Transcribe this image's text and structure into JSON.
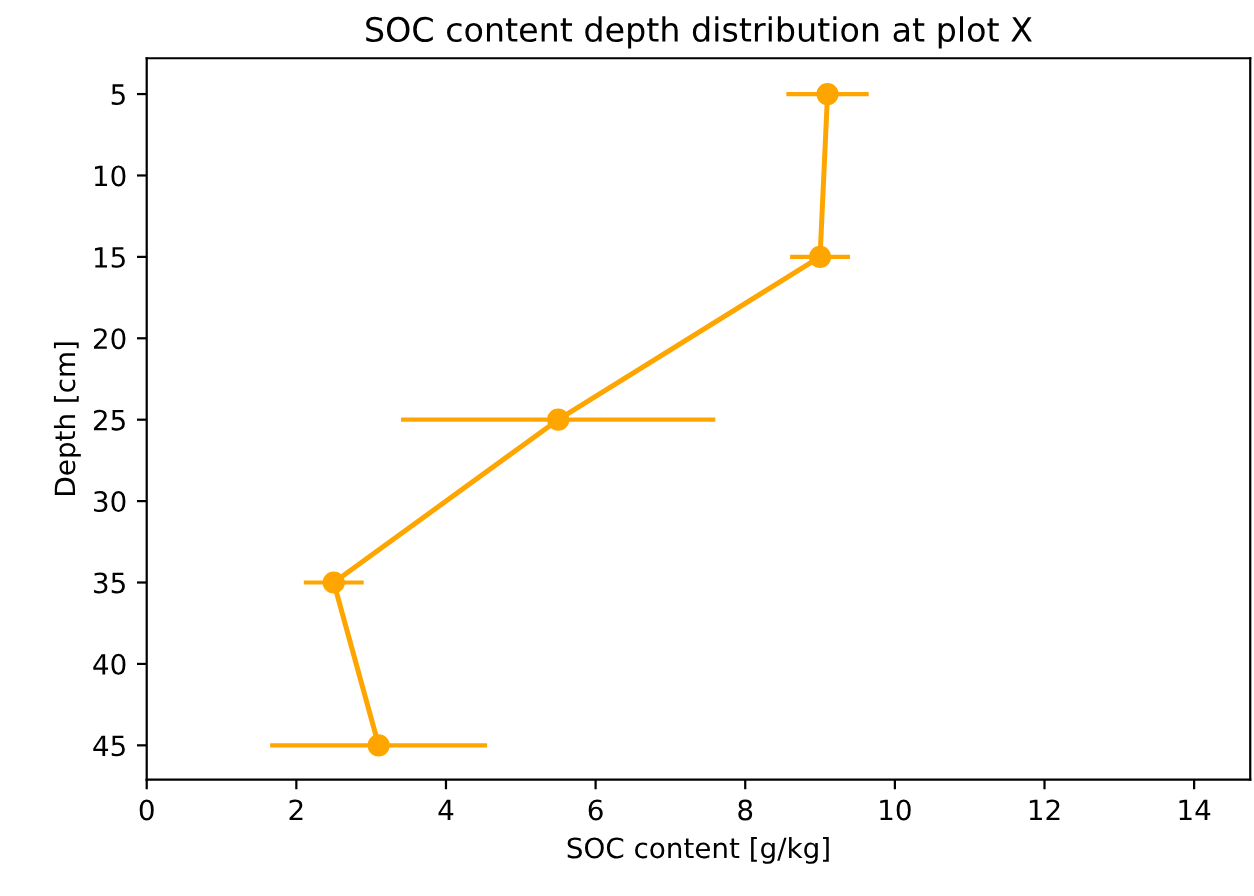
{
  "chart_data": {
    "type": "line",
    "title": "SOC content depth distribution at plot X",
    "xlabel": "SOC content [g/kg]",
    "ylabel": "Depth [cm]",
    "x": [
      9.1,
      9.0,
      5.5,
      2.5,
      3.1
    ],
    "values": [
      5,
      15,
      25,
      35,
      45
    ],
    "xerrors": [
      0.55,
      0.4,
      2.1,
      0.4,
      1.45
    ],
    "color": "#ffa500",
    "marker": "circle",
    "line_style": "solid",
    "xlim": [
      0,
      14.75
    ],
    "xticks": [
      0,
      2,
      4,
      6,
      8,
      10,
      12,
      14
    ],
    "ylim": [
      47.1,
      2.8
    ],
    "yticks": [
      5,
      10,
      15,
      20,
      25,
      30,
      35,
      40,
      45
    ],
    "grid": false,
    "legend": false
  }
}
